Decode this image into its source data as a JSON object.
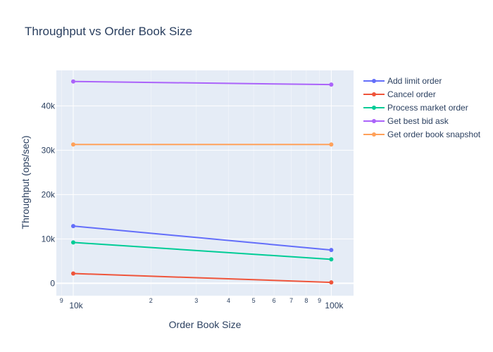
{
  "chart_data": {
    "type": "line",
    "title": "Throughput vs Order Book Size",
    "xlabel": "Order Book Size",
    "ylabel": "Throughput (ops/sec)",
    "x_scale": "log",
    "x": [
      10000,
      100000
    ],
    "x_major_ticks": [
      {
        "value": 10000,
        "label": "10k"
      },
      {
        "value": 100000,
        "label": "100k"
      }
    ],
    "x_minor_ticks": [
      {
        "value": 9000,
        "label": "9"
      },
      {
        "value": 20000,
        "label": "2"
      },
      {
        "value": 30000,
        "label": "3"
      },
      {
        "value": 40000,
        "label": "4"
      },
      {
        "value": 50000,
        "label": "5"
      },
      {
        "value": 60000,
        "label": "6"
      },
      {
        "value": 70000,
        "label": "7"
      },
      {
        "value": 80000,
        "label": "8"
      },
      {
        "value": 90000,
        "label": "9"
      }
    ],
    "xlim": [
      8600,
      122000
    ],
    "ylim": [
      -2800,
      48000
    ],
    "y_ticks": [
      {
        "value": 0,
        "label": "0"
      },
      {
        "value": 10000,
        "label": "10k"
      },
      {
        "value": 20000,
        "label": "20k"
      },
      {
        "value": 30000,
        "label": "30k"
      },
      {
        "value": 40000,
        "label": "40k"
      }
    ],
    "grid": true,
    "legend_position": "right",
    "series": [
      {
        "name": "Add limit order",
        "color": "#636efa",
        "values": [
          12900,
          7500
        ]
      },
      {
        "name": "Cancel order",
        "color": "#ef553b",
        "values": [
          2200,
          200
        ]
      },
      {
        "name": "Process market order",
        "color": "#00cc96",
        "values": [
          9200,
          5400
        ]
      },
      {
        "name": "Get best bid ask",
        "color": "#ab63fa",
        "values": [
          45500,
          44800
        ]
      },
      {
        "name": "Get order book snapshot",
        "color": "#ffa15a",
        "values": [
          31300,
          31300
        ]
      }
    ],
    "plot_background": "#e5ecf6"
  }
}
